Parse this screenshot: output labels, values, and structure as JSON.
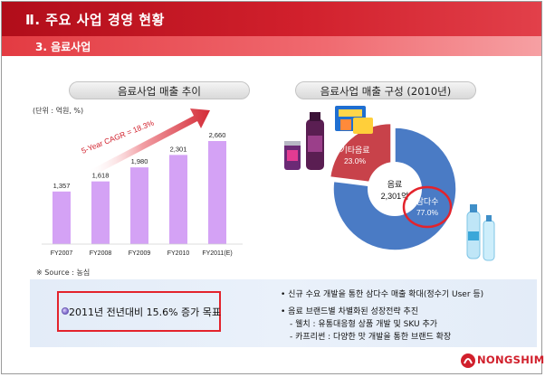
{
  "header": {
    "title": "Ⅱ. 주요 사업 경영 현황",
    "subtitle": "3. 음료사업"
  },
  "left_chart": {
    "pill_title": "음료사업 매출 추이",
    "unit": "(단위 : 억원, %)",
    "cagr_label": "5-Year CAGR = 18.3%",
    "source": "※ Source : 농심"
  },
  "right_chart": {
    "pill_title": "음료사업 매출 구성 (2010년)",
    "center_label": "음료",
    "center_value": "2,301억",
    "slice_other_label": "기타음료",
    "slice_other_value": "23.0%",
    "slice_main_label": "삼다수",
    "slice_main_value": "77.0%"
  },
  "chart_data": [
    {
      "type": "bar",
      "categories": [
        "FY2007",
        "FY2008",
        "FY2009",
        "FY2010",
        "FY2011(E)"
      ],
      "values": [
        1357,
        1618,
        1980,
        2301,
        2660
      ],
      "value_labels": [
        "1,357",
        "1,618",
        "1,980",
        "2,301",
        "2,660"
      ],
      "bar_color": "#d4a2f5",
      "ylim": [
        0,
        2800
      ]
    },
    {
      "type": "pie",
      "labels": [
        "삼다수",
        "기타음료"
      ],
      "values": [
        77.0,
        23.0
      ],
      "colors": [
        "#4a7bc5",
        "#c8424a"
      ]
    }
  ],
  "bottom": {
    "target": "2011년 전년대비 15.6% 증가 목표",
    "bullets": [
      "• 신규 수요 개발을 통한 삼다수 매출 확대(정수기 User 등)",
      "• 음료 브랜드별 차별화된 성장전략 추진",
      "- 웰치 : 유통대응형 상품 개발 및 SKU 추가",
      "- 카프리썬 : 다양한 맛 개발을 통한 브랜드 확장"
    ]
  },
  "logo": {
    "text": "NONGSHIM",
    "color": "#d1202c"
  }
}
